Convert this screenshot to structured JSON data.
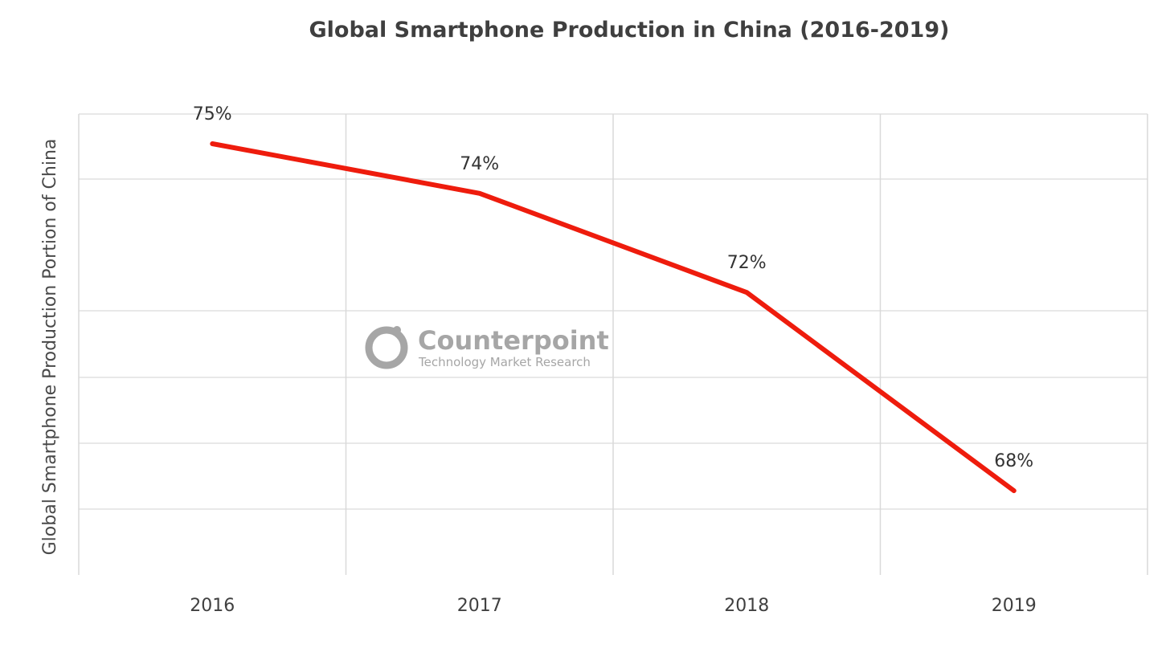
{
  "chart_data": {
    "type": "line",
    "title": "Global Smartphone Production in China (2016-2019)",
    "ylabel": "Global Smartphone Production Portion of China",
    "xlabel": "",
    "categories": [
      "2016",
      "2017",
      "2018",
      "2019"
    ],
    "series": [
      {
        "values": [
          75,
          74,
          72,
          68
        ],
        "labels": [
          "75%",
          "74%",
          "72%",
          "68%"
        ],
        "color": "#ee1c0d"
      }
    ],
    "ylim": [
      66.3,
      75.6
    ],
    "grid": true,
    "legend": "none"
  },
  "watermark": {
    "name": "Counterpoint",
    "tagline": "Technology Market Research",
    "logo_icon": "counterpoint-logo-icon"
  },
  "colors": {
    "line": "#ee1c0d",
    "grid": "#d9d9d9",
    "watermark": "#a6a6a6"
  }
}
